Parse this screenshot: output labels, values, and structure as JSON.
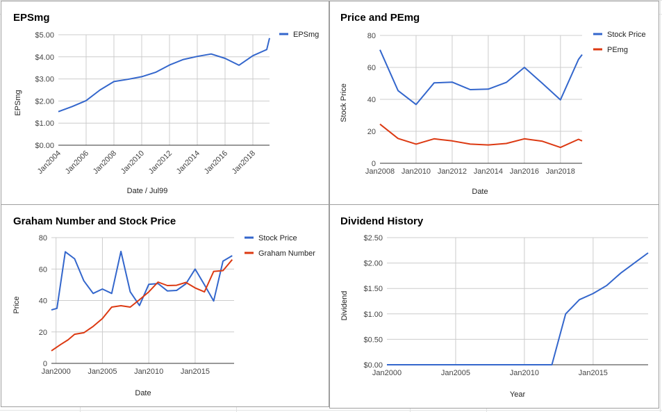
{
  "colors": {
    "blue": "#3366cc",
    "red": "#dc3912",
    "grid": "#cccccc",
    "axis": "#333333"
  },
  "chart_data": [
    {
      "type": "line",
      "title": "EPSmg",
      "xlabel": "Date / Jul99",
      "ylabel": "EPSmg",
      "x_ticks": [
        "Jan2004",
        "Jan2006",
        "Jan2008",
        "Jan2010",
        "Jan2012",
        "Jan2014",
        "Jan2016",
        "Jan2018"
      ],
      "y_ticks": [
        "$0.00",
        "$1.00",
        "$2.00",
        "$3.00",
        "$4.00",
        "$5.00"
      ],
      "xlim": [
        2004,
        2019.2
      ],
      "ylim": [
        0,
        5
      ],
      "legend_position": "right",
      "series": [
        {
          "name": "EPSmg",
          "color": "#3366cc",
          "x": [
            2004,
            2005,
            2006,
            2007,
            2008,
            2009,
            2010,
            2011,
            2012,
            2013,
            2014,
            2015,
            2016,
            2017,
            2018,
            2019,
            2019.2
          ],
          "y": [
            1.52,
            1.75,
            2.02,
            2.5,
            2.88,
            2.98,
            3.1,
            3.3,
            3.63,
            3.88,
            4.02,
            4.13,
            3.93,
            3.62,
            4.05,
            4.33,
            4.85
          ]
        }
      ]
    },
    {
      "type": "line",
      "title": "Price and PEmg",
      "xlabel": "Date",
      "ylabel": "Stock Price",
      "x_ticks": [
        "Jan2008",
        "Jan2010",
        "Jan2012",
        "Jan2014",
        "Jan2016",
        "Jan2018"
      ],
      "y_ticks": [
        "0",
        "20",
        "40",
        "60",
        "80"
      ],
      "xlim": [
        2008,
        2019.2
      ],
      "ylim": [
        0,
        80
      ],
      "legend_position": "right",
      "series": [
        {
          "name": "Stock Price",
          "color": "#3366cc",
          "x": [
            2008,
            2009,
            2010,
            2011,
            2012,
            2013,
            2014,
            2015,
            2016,
            2017,
            2018,
            2019,
            2019.2
          ],
          "y": [
            71,
            45.5,
            36.8,
            50.3,
            50.8,
            46.1,
            46.4,
            50.6,
            60,
            50,
            39.7,
            65,
            68
          ]
        },
        {
          "name": "PEmg",
          "color": "#dc3912",
          "x": [
            2008,
            2009,
            2010,
            2011,
            2012,
            2013,
            2014,
            2015,
            2016,
            2017,
            2018,
            2019,
            2019.2
          ],
          "y": [
            24.5,
            15.5,
            12,
            15.3,
            14,
            12,
            11.5,
            12.4,
            15.3,
            13.8,
            9.9,
            15,
            14
          ]
        }
      ]
    },
    {
      "type": "line",
      "title": "Graham Number and Stock Price",
      "xlabel": "Date",
      "ylabel": "Price",
      "x_ticks": [
        "Jan2000",
        "Jan2005",
        "Jan2010",
        "Jan2015"
      ],
      "y_ticks": [
        "0",
        "20",
        "40",
        "60",
        "80"
      ],
      "xlim": [
        1999.5,
        2019.2
      ],
      "ylim": [
        0,
        80
      ],
      "legend_position": "right",
      "series": [
        {
          "name": "Stock Price",
          "color": "#3366cc",
          "x": [
            1999.5,
            2000.1,
            2001,
            2002,
            2003,
            2004,
            2005,
            2006,
            2007,
            2008,
            2009,
            2010,
            2011,
            2012,
            2013,
            2014,
            2015,
            2016,
            2017,
            2018,
            2019
          ],
          "y": [
            34,
            35,
            71,
            66.5,
            52.5,
            44.5,
            47.3,
            44.5,
            71.2,
            45.5,
            36.8,
            50.3,
            50.8,
            46.1,
            46.4,
            50.6,
            60,
            50,
            39.7,
            65,
            68.5
          ]
        },
        {
          "name": "Graham Number",
          "color": "#dc3912",
          "x": [
            1999.5,
            2000.5,
            2001.3,
            2002,
            2003,
            2004,
            2005,
            2006,
            2007,
            2008,
            2009,
            2010,
            2011,
            2012,
            2013,
            2014,
            2015,
            2016,
            2017,
            2018,
            2019
          ],
          "y": [
            8,
            12,
            15,
            18.5,
            19.5,
            23.5,
            28.5,
            35.8,
            36.7,
            35.8,
            40.5,
            45.5,
            51.7,
            49.5,
            49.7,
            51.5,
            48,
            45.5,
            58.5,
            59,
            66
          ]
        }
      ]
    },
    {
      "type": "line",
      "title": "Dividend History",
      "xlabel": "Year",
      "ylabel": "Dividend",
      "x_ticks": [
        "Jan2000",
        "Jan2005",
        "Jan2010",
        "Jan2015"
      ],
      "y_ticks": [
        "$0.00",
        "$0.50",
        "$1.00",
        "$1.50",
        "$2.00",
        "$2.50"
      ],
      "xlim": [
        2000,
        2019
      ],
      "ylim": [
        0,
        2.5
      ],
      "legend_position": "none",
      "series": [
        {
          "name": "",
          "color": "#3366cc",
          "x": [
            2000,
            2012,
            2013,
            2014,
            2015,
            2016,
            2017,
            2018,
            2019
          ],
          "y": [
            0,
            0,
            1.0,
            1.28,
            1.4,
            1.56,
            1.8,
            2.0,
            2.2
          ]
        }
      ]
    }
  ]
}
